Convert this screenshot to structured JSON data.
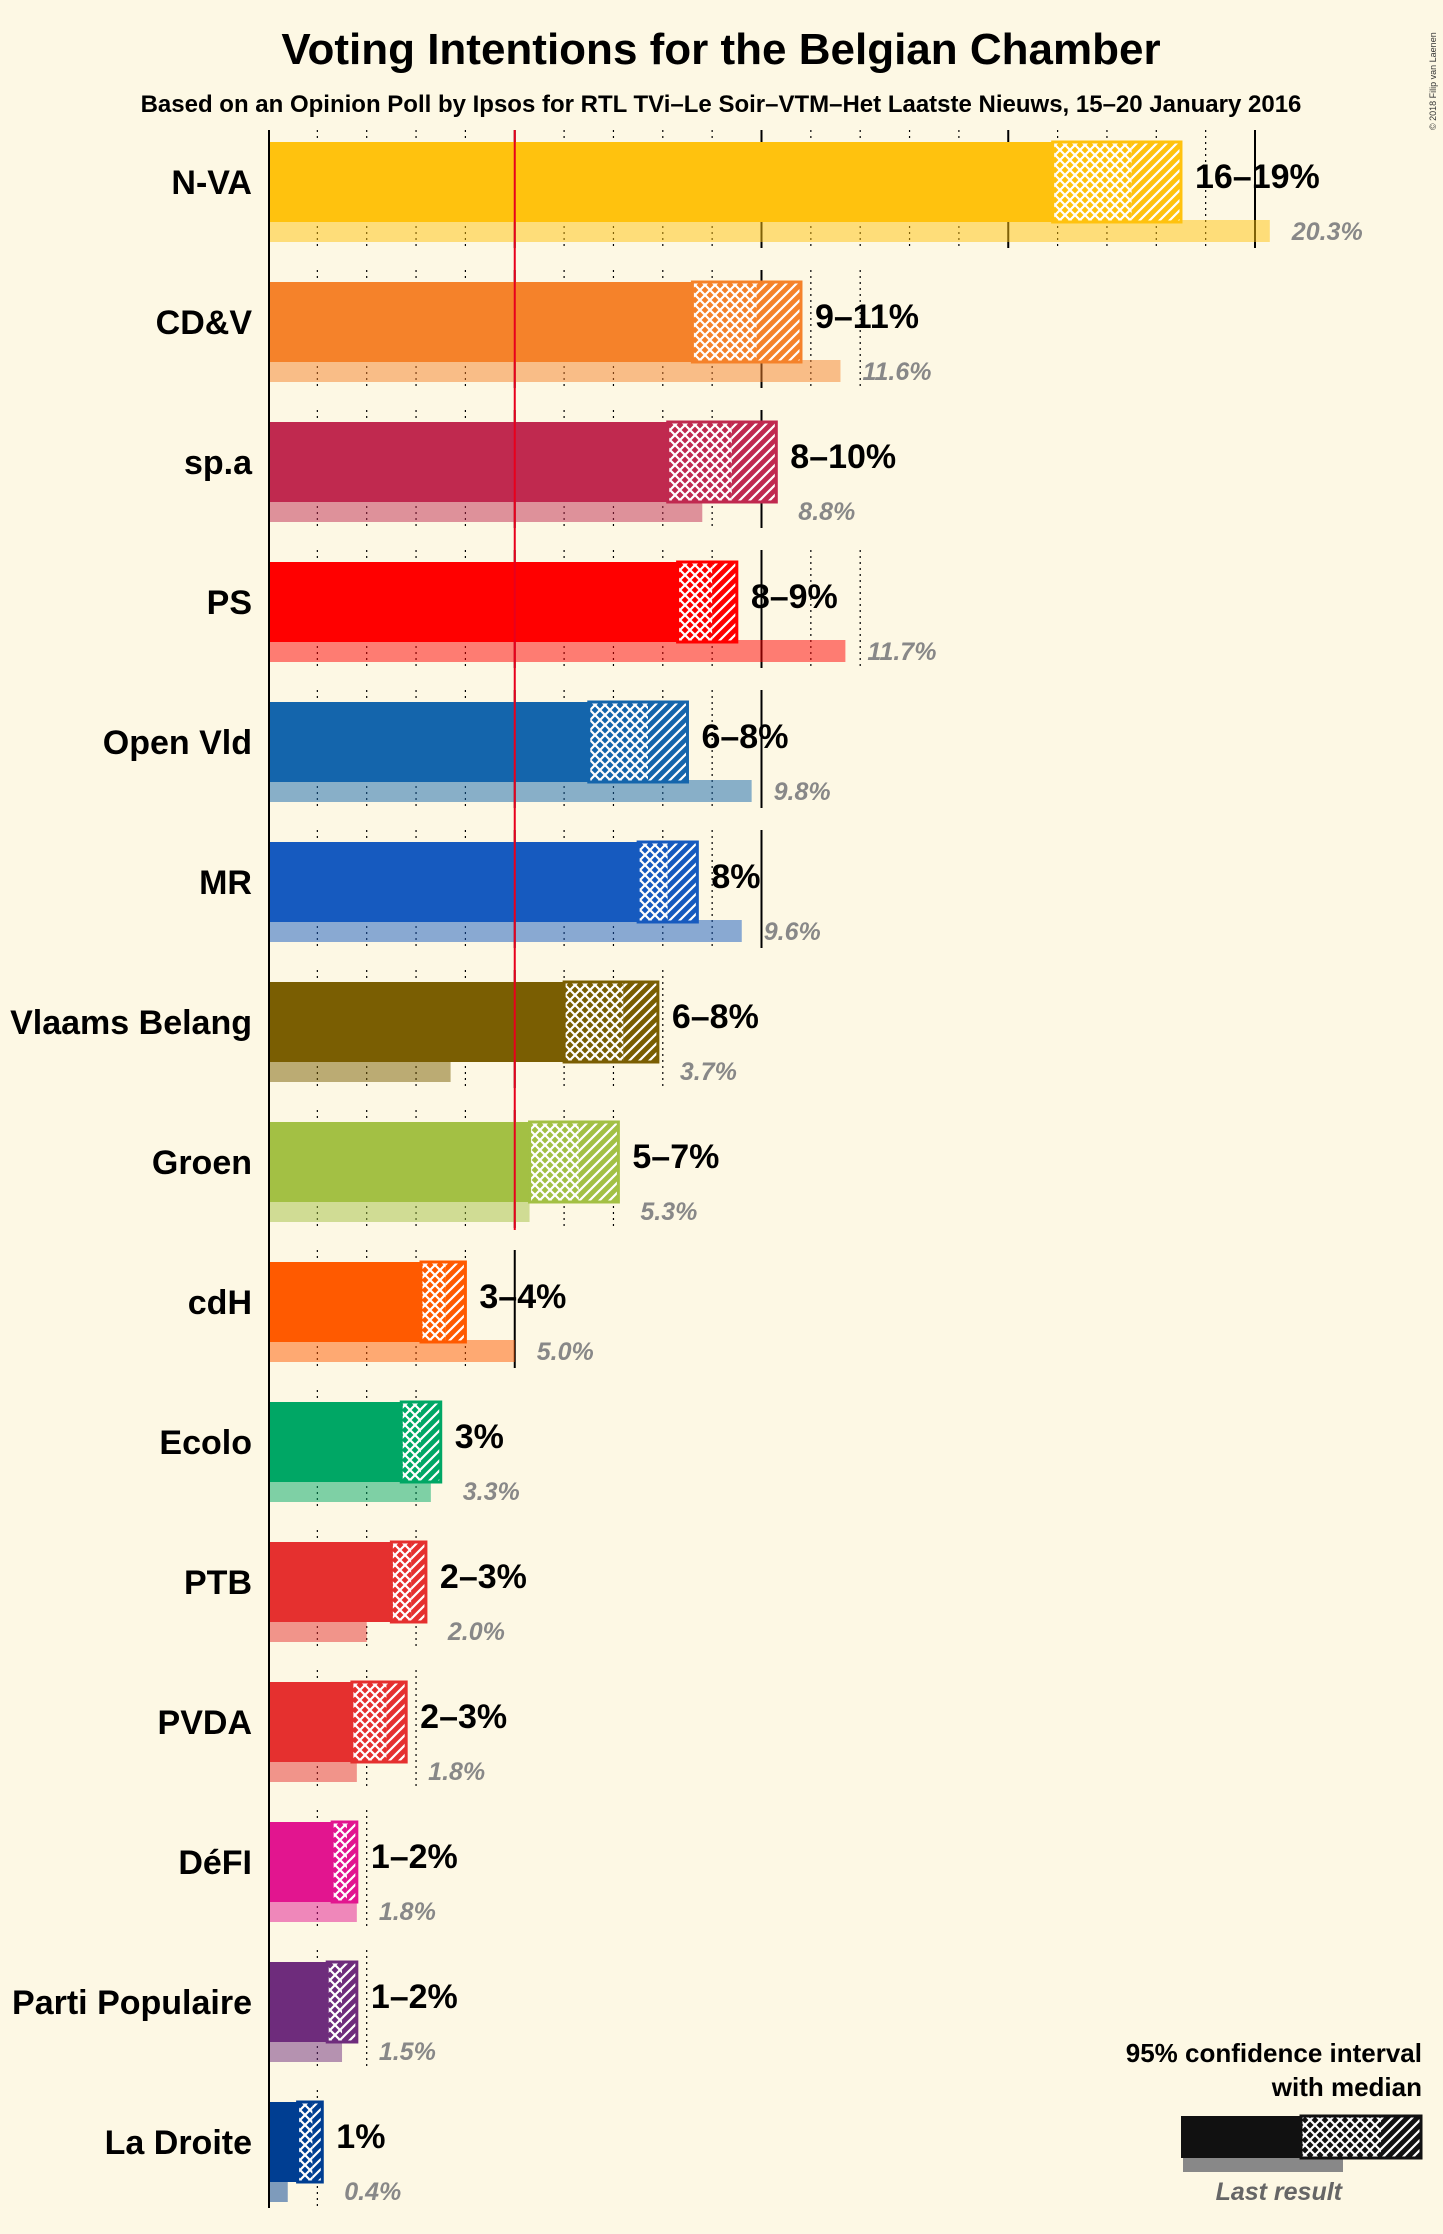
{
  "chart_data": {
    "type": "bar",
    "title": "Voting Intentions for the Belgian Chamber",
    "subtitle": "Based on an Opinion Poll by Ipsos for RTL TVi–Le Soir–VTM–Het Laatste Nieuws, 15–20 January 2016",
    "copyright": "© 2018 Filip van Laenen",
    "threshold": 5,
    "xlim": [
      0,
      23
    ],
    "parties": [
      {
        "name": "N-VA",
        "color": "#FFC20E",
        "ci_low": 15.9,
        "median": 17.5,
        "ci_high": 18.5,
        "median_low": 17.5,
        "range_label": "16–19%",
        "last": 20.3,
        "last_label": "20.3%"
      },
      {
        "name": "CD&V",
        "color": "#F5822A",
        "ci_low": 8.6,
        "median": 9.9,
        "ci_high": 10.8,
        "range_label": "9–11%",
        "last": 11.6,
        "last_label": "11.6%"
      },
      {
        "name": "sp.a",
        "color": "#C0294F",
        "ci_low": 8.1,
        "median": 9.4,
        "ci_high": 10.3,
        "range_label": "8–10%",
        "last": 8.8,
        "last_label": "8.8%"
      },
      {
        "name": "PS",
        "color": "#FF0000",
        "ci_low": 8.3,
        "median": 9.0,
        "ci_high": 9.5,
        "range_label": "8–9%",
        "last": 11.7,
        "last_label": "11.7%"
      },
      {
        "name": "Open Vld",
        "color": "#1465AC",
        "ci_low": 6.5,
        "median": 7.7,
        "ci_high": 8.5,
        "range_label": "6–8%",
        "last": 9.8,
        "last_label": "9.8%"
      },
      {
        "name": "MR",
        "color": "#165ABF",
        "ci_low": 7.5,
        "median": 8.1,
        "ci_high": 8.7,
        "range_label": "8%",
        "last": 9.6,
        "last_label": "9.6%"
      },
      {
        "name": "Vlaams Belang",
        "color": "#7A5E02",
        "ci_low": 6.0,
        "median": 7.2,
        "ci_high": 7.9,
        "range_label": "6–8%",
        "last": 3.7,
        "last_label": "3.7%"
      },
      {
        "name": "Groen",
        "color": "#A3C044",
        "ci_low": 5.3,
        "median": 6.3,
        "ci_high": 7.1,
        "range_label": "5–7%",
        "last": 5.3,
        "last_label": "5.3%"
      },
      {
        "name": "cdH",
        "color": "#FF5A00",
        "ci_low": 3.1,
        "median": 3.6,
        "ci_high": 4.0,
        "range_label": "3–4%",
        "last": 5.0,
        "last_label": "5.0%"
      },
      {
        "name": "Ecolo",
        "color": "#00A765",
        "ci_low": 2.7,
        "median": 3.1,
        "ci_high": 3.5,
        "range_label": "3%",
        "last": 3.3,
        "last_label": "3.3%"
      },
      {
        "name": "PTB",
        "color": "#E5302F",
        "ci_low": 2.5,
        "median": 2.9,
        "ci_high": 3.2,
        "range_label": "2–3%",
        "last": 2.0,
        "last_label": "2.0%"
      },
      {
        "name": "PVDA",
        "color": "#E5302F",
        "ci_low": 1.7,
        "median": 2.4,
        "ci_high": 2.8,
        "range_label": "2–3%",
        "last": 1.8,
        "last_label": "1.8%"
      },
      {
        "name": "DéFI",
        "color": "#E2158F",
        "ci_low": 1.3,
        "median": 1.6,
        "ci_high": 1.8,
        "range_label": "1–2%",
        "last": 1.8,
        "last_label": "1.8%"
      },
      {
        "name": "Parti Populaire",
        "color": "#6E2C7C",
        "ci_low": 1.2,
        "median": 1.5,
        "ci_high": 1.8,
        "range_label": "1–2%",
        "last": 1.5,
        "last_label": "1.5%"
      },
      {
        "name": "La Droite",
        "color": "#003E92",
        "ci_low": 0.6,
        "median": 0.9,
        "ci_high": 1.1,
        "range_label": "1%",
        "last": 0.4,
        "last_label": "0.4%"
      }
    ],
    "legend": {
      "line1": "95% confidence interval",
      "line2": "with median",
      "last": "Last result"
    }
  }
}
